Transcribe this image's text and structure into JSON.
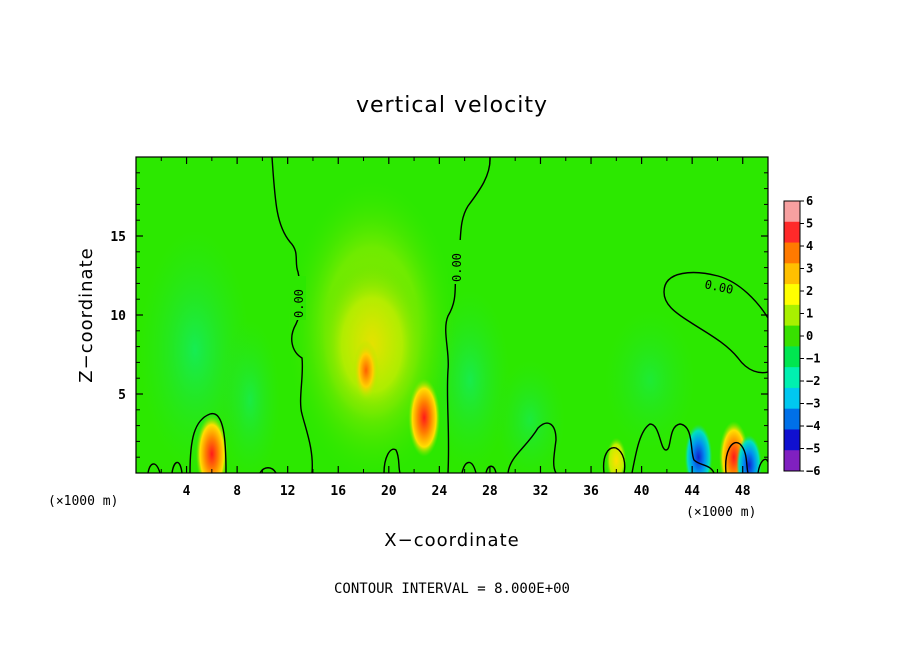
{
  "chart_data": {
    "type": "heatmap",
    "title": "vertical velocity",
    "xlabel": "X−coordinate",
    "ylabel": "Z−coordinate",
    "x_unit": "(×1000 m)",
    "x_unit_right": "(×1000 m)",
    "xlim": [
      0,
      50
    ],
    "ylim": [
      0,
      20
    ],
    "x_ticks": [
      "4",
      "8",
      "12",
      "16",
      "20",
      "24",
      "28",
      "32",
      "36",
      "40",
      "44",
      "48"
    ],
    "y_ticks": [
      "5",
      "10",
      "15"
    ],
    "colorbar": {
      "levels": [
        "6",
        "5",
        "4",
        "3",
        "2",
        "1",
        "0",
        "−1",
        "−2",
        "−3",
        "−4",
        "−5",
        "−6"
      ],
      "colors": [
        "#f7a0a0",
        "#ff2a2a",
        "#ff7a00",
        "#ffc000",
        "#ffff00",
        "#a8f000",
        "#38e000",
        "#00e650",
        "#00f0b0",
        "#00c8f0",
        "#0070e8",
        "#1010d0",
        "#8020c0"
      ],
      "range": [
        -6,
        6
      ]
    },
    "contour_label": "0.00",
    "contour_interval_text": "CONTOUR INTERVAL = 8.000E+00",
    "features": [
      {
        "x": 6.0,
        "z": 1.2,
        "w": 4.5
      },
      {
        "x": 18.2,
        "z": 6.5,
        "w": 3.0
      },
      {
        "x": 22.8,
        "z": 3.5,
        "w": 4.5
      },
      {
        "x": 38.0,
        "z": 0.8,
        "w": 1.8
      },
      {
        "x": 44.5,
        "z": 1.0,
        "w": -3.5
      },
      {
        "x": 47.3,
        "z": 1.0,
        "w": 4.0
      },
      {
        "x": 48.5,
        "z": 0.5,
        "w": -3.0
      }
    ]
  }
}
